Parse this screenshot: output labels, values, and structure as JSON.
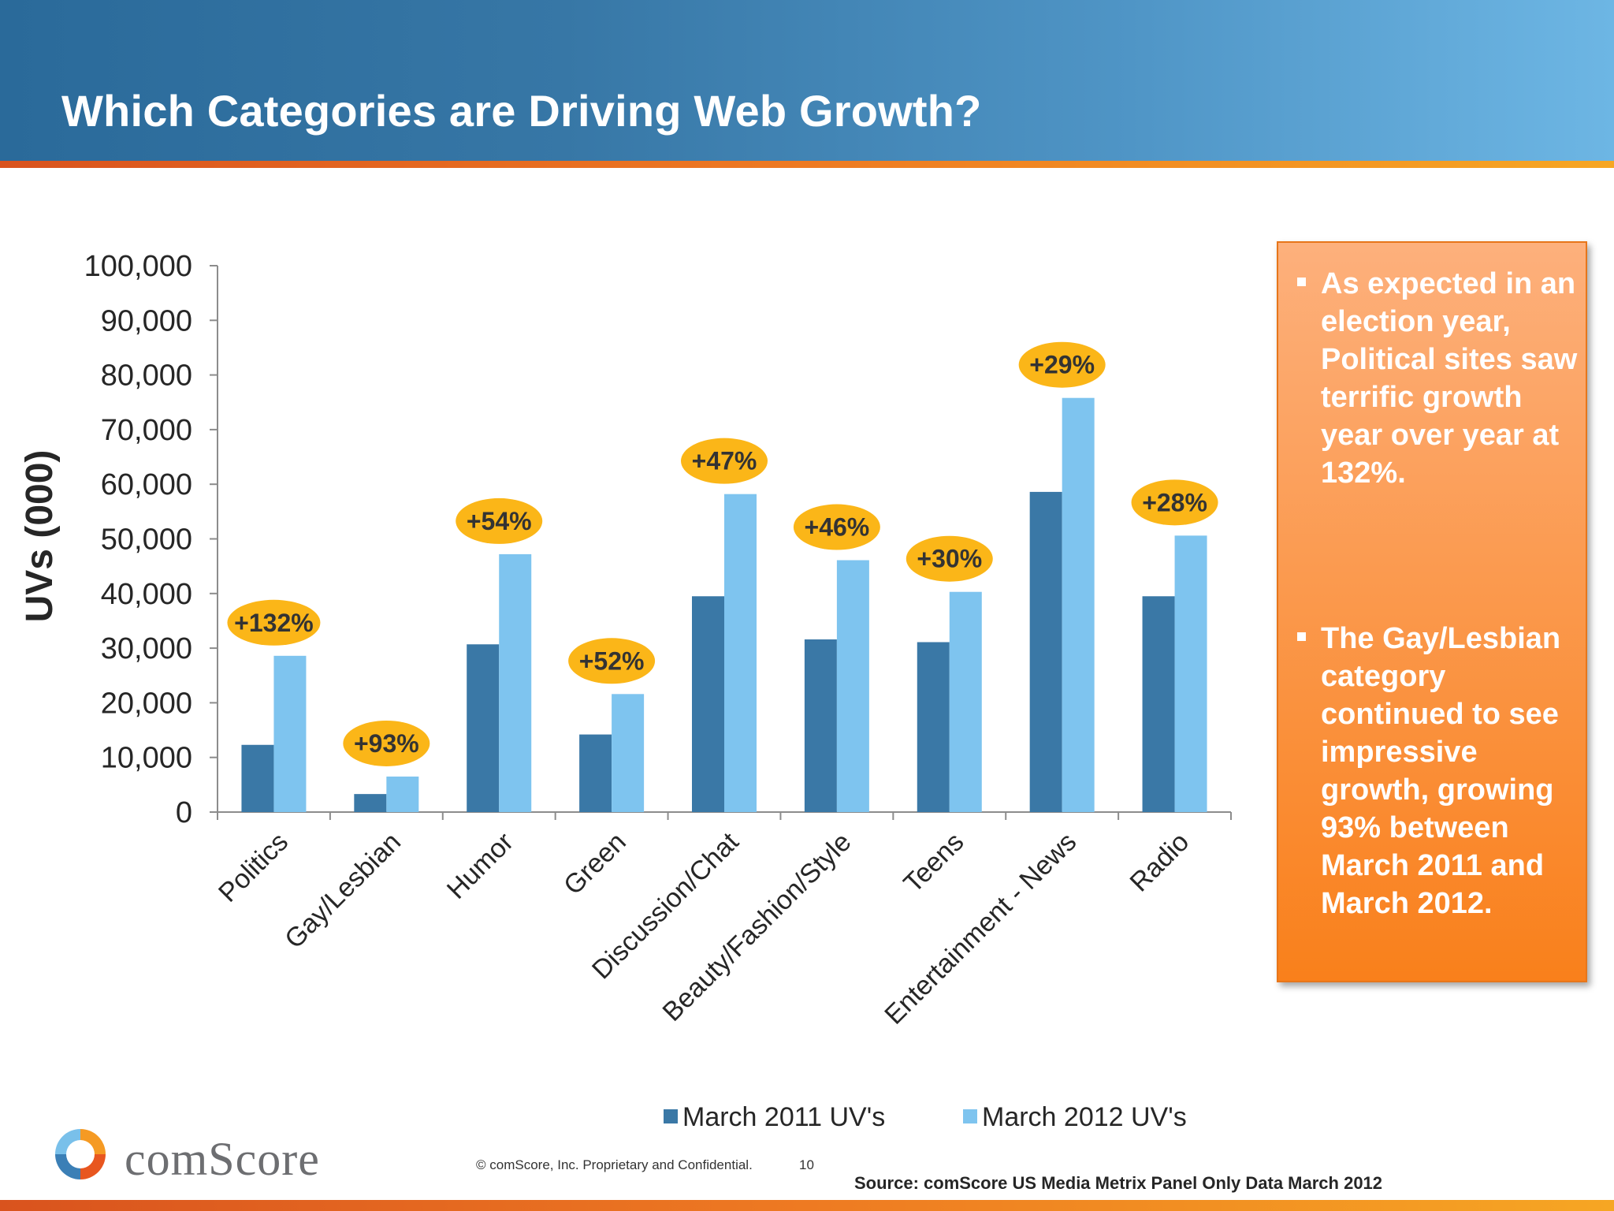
{
  "header": {
    "title": "Which Categories are Driving Web Growth?"
  },
  "colors": {
    "march_2011": "#3a78a6",
    "march_2012": "#7ec4ef",
    "badge": "#fbb618",
    "callout": "#fa8a2e"
  },
  "chart_data": {
    "type": "bar",
    "ylabel": "UVs (000)",
    "ylim": [
      0,
      100000
    ],
    "y_ticks": [
      "0",
      "10,000",
      "20,000",
      "30,000",
      "40,000",
      "50,000",
      "60,000",
      "70,000",
      "80,000",
      "90,000",
      "100,000"
    ],
    "categories": [
      "Politics",
      "Gay/Lesbian",
      "Humor",
      "Green",
      "Discussion/Chat",
      "Beauty/Fashion/Style",
      "Teens",
      "Entertainment - News",
      "Radio"
    ],
    "series": [
      {
        "name": "March 2011 UV's",
        "values": [
          12300,
          3300,
          30700,
          14200,
          39500,
          31600,
          31100,
          58600,
          39500
        ]
      },
      {
        "name": "March 2012 UV's",
        "values": [
          28600,
          6500,
          47200,
          21600,
          58200,
          46100,
          40300,
          75800,
          50600
        ]
      }
    ],
    "growth_labels": [
      "+132%",
      "+93%",
      "+54%",
      "+52%",
      "+47%",
      "+46%",
      "+30%",
      "+29%",
      "+28%"
    ],
    "legend_position": "bottom",
    "grid": false
  },
  "callout": {
    "items": [
      "As expected in an election year, Political sites saw terrific growth year over year at 132%.",
      "The Gay/Lesbian category continued to see impressive growth, growing 93% between March 2011 and March 2012."
    ]
  },
  "footer": {
    "logo_text": "comScore",
    "copyright": "© comScore, Inc.  Proprietary and Confidential.",
    "page_number": "10",
    "source": "Source:  comScore US Media Metrix Panel Only Data March 2012"
  }
}
